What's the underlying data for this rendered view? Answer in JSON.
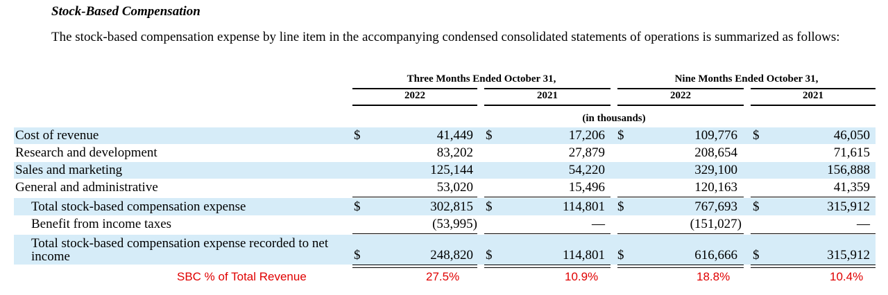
{
  "section": {
    "title": "Stock-Based Compensation",
    "intro": "The stock-based compensation expense by line item in the accompanying condensed consolidated statements of operations is summarized as follows:"
  },
  "table": {
    "group_headers": [
      "Three Months Ended October 31,",
      "Nine Months Ended October 31,"
    ],
    "year_headers": [
      "2022",
      "2021",
      "2022",
      "2021"
    ],
    "units_note": "(in thousands)",
    "currency_symbol": "$",
    "rows": [
      {
        "label": "Cost of revenue",
        "values": [
          "41,449",
          "17,206",
          "109,776",
          "46,050"
        ]
      },
      {
        "label": "Research and development",
        "values": [
          "83,202",
          "27,879",
          "208,654",
          "71,615"
        ]
      },
      {
        "label": "Sales and marketing",
        "values": [
          "125,144",
          "54,220",
          "329,100",
          "156,888"
        ]
      },
      {
        "label": "General and administrative",
        "values": [
          "53,020",
          "15,496",
          "120,163",
          "41,359"
        ]
      },
      {
        "label": "Total stock-based compensation expense",
        "values": [
          "302,815",
          "114,801",
          "767,693",
          "315,912"
        ]
      },
      {
        "label": "Benefit from income taxes",
        "values": [
          "(53,995)",
          "—",
          "(151,027)",
          "—"
        ]
      },
      {
        "label_line1": "Total stock-based compensation expense recorded to net",
        "label_line2": "income",
        "values": [
          "248,820",
          "114,801",
          "616,666",
          "315,912"
        ]
      }
    ]
  },
  "annotation": {
    "label": "SBC % of Total Revenue",
    "values": [
      "27.5%",
      "10.9%",
      "18.8%",
      "10.4%"
    ],
    "color": "#e00000"
  },
  "colors": {
    "row_shade": "#d6ecf8"
  }
}
